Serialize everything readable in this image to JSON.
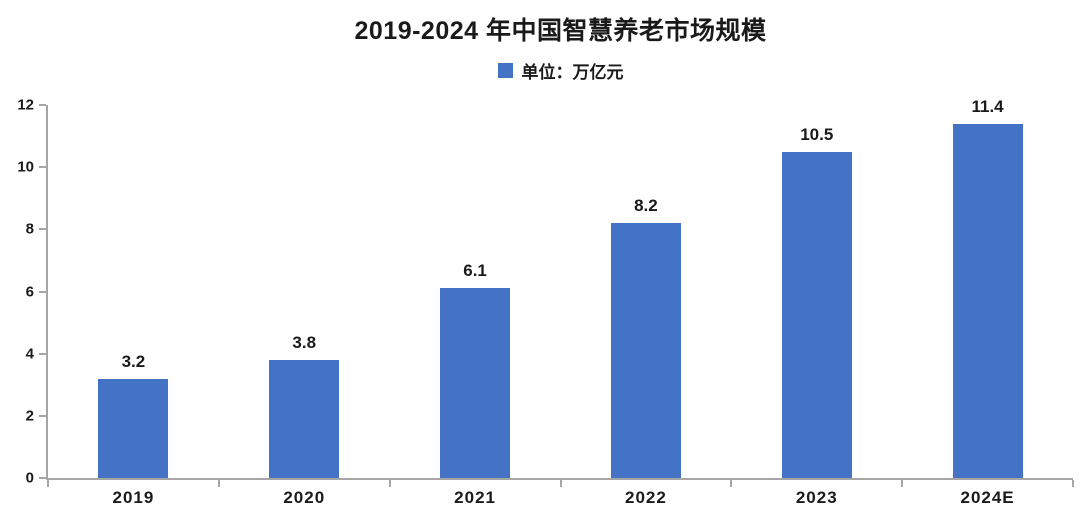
{
  "page": {
    "background": "#ffffff"
  },
  "header": {
    "title": "2019-2024 年中国智慧养老市场规模",
    "legend_label": "单位：万亿元"
  },
  "colors": {
    "bar": "#4472c4",
    "axis": "#a6a6a6",
    "text": "#1a1a1a"
  },
  "chart_data": {
    "type": "bar",
    "title": "2019-2024 年中国智慧养老市场规模",
    "legend": [
      {
        "label": "单位：万亿元",
        "color": "#4472c4"
      }
    ],
    "legend_position": "top-center",
    "categories": [
      "2019",
      "2020",
      "2021",
      "2022",
      "2023",
      "2024E"
    ],
    "values": [
      3.2,
      3.8,
      6.1,
      8.2,
      10.5,
      11.4
    ],
    "value_labels": [
      "3.2",
      "3.8",
      "6.1",
      "8.2",
      "10.5",
      "11.4"
    ],
    "xlabel": "",
    "ylabel": "",
    "ylim": [
      0,
      12
    ],
    "yticks": [
      0,
      2,
      4,
      6,
      8,
      10,
      12
    ],
    "grid": false
  }
}
